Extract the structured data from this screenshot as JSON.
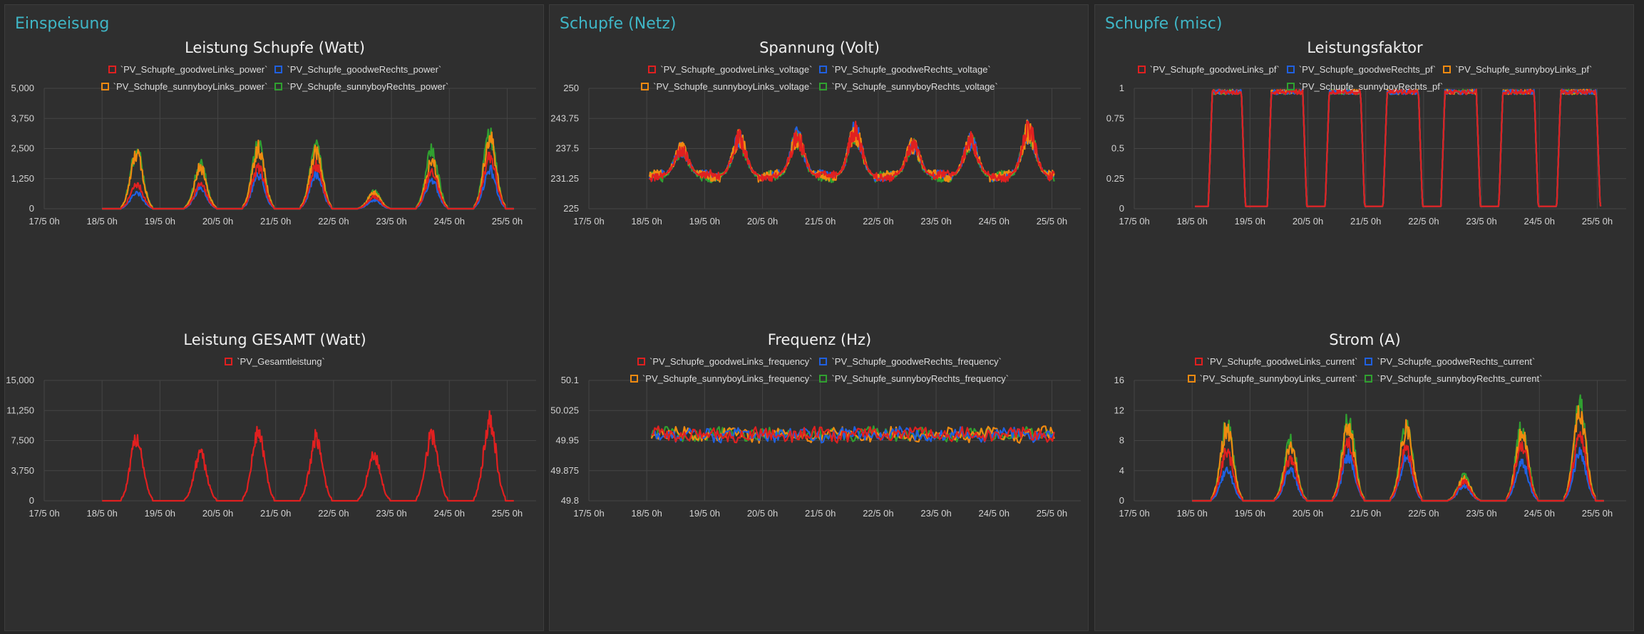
{
  "colors": {
    "background": "#262626",
    "panel": "#2f2f2f",
    "panel_title": "#3fb6c6",
    "grid": "#454545",
    "series": [
      "#e02020",
      "#2060e0",
      "#f08a10",
      "#30a030"
    ]
  },
  "panels": [
    {
      "title": "Einspeisung"
    },
    {
      "title": "Schupfe (Netz)"
    },
    {
      "title": "Schupfe (misc)"
    }
  ],
  "x_ticks": [
    "17/5  0h",
    "18/5  0h",
    "19/5  0h",
    "20/5  0h",
    "21/5  0h",
    "22/5  0h",
    "23/5  0h",
    "24/5  0h",
    "25/5  0h"
  ],
  "chart_data": [
    {
      "type": "line",
      "title": "Leistung Schupfe (Watt)",
      "xlabel": "",
      "ylabel": "",
      "ylim": [
        0,
        5000
      ],
      "y_ticks": [
        "0",
        "1,250",
        "2,500",
        "3,750",
        "5,000"
      ],
      "xlim": [
        "17/5 0h",
        "25/5 12h"
      ],
      "grid": true,
      "legend_position": "top",
      "series": [
        {
          "name": "`PV_Schupfe_goodweLinks_power`",
          "color": "#e02020",
          "days": [
            [
              18.6,
              1000
            ],
            [
              19.7,
              1000
            ],
            [
              20.7,
              1700
            ],
            [
              21.7,
              1800
            ],
            [
              22.7,
              500
            ],
            [
              23.7,
              1500
            ],
            [
              24.7,
              2200
            ]
          ]
        },
        {
          "name": "`PV_Schupfe_goodweRechts_power`",
          "color": "#2060e0",
          "days": [
            [
              18.6,
              650
            ],
            [
              19.7,
              850
            ],
            [
              20.7,
              1350
            ],
            [
              21.7,
              1450
            ],
            [
              22.7,
              350
            ],
            [
              23.7,
              1200
            ],
            [
              24.7,
              1600
            ]
          ]
        },
        {
          "name": "`PV_Schupfe_sunnyboyLinks_power`",
          "color": "#f08a10",
          "days": [
            [
              18.6,
              2250
            ],
            [
              19.7,
              1700
            ],
            [
              20.7,
              2500
            ],
            [
              21.7,
              2400
            ],
            [
              22.7,
              650
            ],
            [
              23.7,
              2000
            ],
            [
              24.7,
              2900
            ]
          ]
        },
        {
          "name": "`PV_Schupfe_sunnyboyRechts_power`",
          "color": "#30a030",
          "days": [
            [
              18.6,
              2450
            ],
            [
              19.7,
              1800
            ],
            [
              20.7,
              2700
            ],
            [
              21.7,
              2500
            ],
            [
              22.7,
              700
            ],
            [
              23.7,
              2400
            ],
            [
              24.7,
              3100
            ]
          ]
        }
      ]
    },
    {
      "type": "line",
      "title": "Leistung GESAMT (Watt)",
      "xlabel": "",
      "ylabel": "",
      "ylim": [
        0,
        15000
      ],
      "y_ticks": [
        "0",
        "3,750",
        "7,500",
        "11,250",
        "15,000"
      ],
      "xlim": [
        "17/5 0h",
        "25/5 12h"
      ],
      "grid": true,
      "legend_position": "top",
      "series": [
        {
          "name": "`PV_Gesamtleistung`",
          "color": "#e02020",
          "days": [
            [
              18.6,
              7800
            ],
            [
              19.7,
              5800
            ],
            [
              20.7,
              8600
            ],
            [
              21.7,
              7800
            ],
            [
              22.7,
              5700
            ],
            [
              23.7,
              8200
            ],
            [
              24.7,
              10200
            ]
          ]
        }
      ]
    },
    {
      "type": "line",
      "title": "Spannung (Volt)",
      "xlabel": "",
      "ylabel": "",
      "ylim": [
        225,
        250
      ],
      "y_ticks": [
        "225",
        "231.25",
        "237.5",
        "243.75",
        "250"
      ],
      "xlim": [
        "17/5 0h",
        "25/5 12h"
      ],
      "grid": true,
      "legend_position": "top",
      "baseline": 231.8,
      "peaks": [
        [
          18.6,
          239.0
        ],
        [
          19.6,
          241.5
        ],
        [
          20.6,
          242.0
        ],
        [
          21.6,
          243.5
        ],
        [
          22.6,
          240.0
        ],
        [
          23.6,
          241.0
        ],
        [
          24.6,
          243.8
        ]
      ],
      "series": [
        {
          "name": "`PV_Schupfe_goodweLinks_voltage`",
          "color": "#e02020"
        },
        {
          "name": "`PV_Schupfe_goodweRechts_voltage`",
          "color": "#2060e0"
        },
        {
          "name": "`PV_Schupfe_sunnyboyLinks_voltage`",
          "color": "#f08a10"
        },
        {
          "name": "`PV_Schupfe_sunnyboyRechts_voltage`",
          "color": "#30a030"
        }
      ]
    },
    {
      "type": "line",
      "title": "Frequenz (Hz)",
      "xlabel": "",
      "ylabel": "",
      "ylim": [
        49.8,
        50.1
      ],
      "y_ticks": [
        "49.8",
        "49.875",
        "49.95",
        "50.025",
        "50.1"
      ],
      "xlim": [
        "17/5 0h",
        "25/5 12h"
      ],
      "grid": true,
      "legend_position": "top",
      "baseline": 49.965,
      "series": [
        {
          "name": "`PV_Schupfe_goodweLinks_frequency`",
          "color": "#e02020"
        },
        {
          "name": "`PV_Schupfe_goodweRechts_frequency`",
          "color": "#2060e0"
        },
        {
          "name": "`PV_Schupfe_sunnyboyLinks_frequency`",
          "color": "#f08a10"
        },
        {
          "name": "`PV_Schupfe_sunnyboyRechts_frequency`",
          "color": "#30a030"
        }
      ]
    },
    {
      "type": "line",
      "title": "Leistungsfaktor",
      "xlabel": "",
      "ylabel": "",
      "ylim": [
        0,
        1
      ],
      "y_ticks": [
        "0",
        "0.25",
        "0.5",
        "0.75",
        "1"
      ],
      "xlim": [
        "17/5 0h",
        "25/5 12h"
      ],
      "grid": true,
      "legend_position": "top",
      "on_periods": [
        [
          18.28,
          18.92
        ],
        [
          19.3,
          19.98
        ],
        [
          20.3,
          20.98
        ],
        [
          21.3,
          21.98
        ],
        [
          22.3,
          22.98
        ],
        [
          23.3,
          23.98
        ],
        [
          24.3,
          25.05
        ]
      ],
      "series": [
        {
          "name": "`PV_Schupfe_goodweLinks_pf`",
          "color": "#e02020"
        },
        {
          "name": "`PV_Schupfe_goodweRechts_pf`",
          "color": "#2060e0"
        },
        {
          "name": "`PV_Schupfe_sunnyboyLinks_pf`",
          "color": "#f08a10"
        },
        {
          "name": "`PV_Schupfe_sunnyboyRechts_pf`",
          "color": "#30a030"
        }
      ]
    },
    {
      "type": "line",
      "title": "Strom (A)",
      "xlabel": "",
      "ylabel": "",
      "ylim": [
        0,
        16
      ],
      "y_ticks": [
        "0",
        "4",
        "8",
        "12",
        "16"
      ],
      "xlim": [
        "17/5 0h",
        "25/5 12h"
      ],
      "grid": true,
      "legend_position": "top",
      "series": [
        {
          "name": "`PV_Schupfe_goodweLinks_current`",
          "color": "#e02020",
          "days": [
            [
              18.6,
              6.5
            ],
            [
              19.7,
              5.5
            ],
            [
              20.7,
              7.5
            ],
            [
              21.7,
              7.0
            ],
            [
              22.7,
              2.5
            ],
            [
              23.7,
              7.5
            ],
            [
              24.7,
              9.0
            ]
          ]
        },
        {
          "name": "`PV_Schupfe_goodweRechts_current`",
          "color": "#2060e0",
          "days": [
            [
              18.6,
              4.0
            ],
            [
              19.7,
              4.0
            ],
            [
              20.7,
              6.0
            ],
            [
              21.7,
              5.5
            ],
            [
              22.7,
              2.0
            ],
            [
              23.7,
              5.0
            ],
            [
              24.7,
              6.5
            ]
          ]
        },
        {
          "name": "`PV_Schupfe_sunnyboyLinks_current`",
          "color": "#f08a10",
          "days": [
            [
              18.6,
              9.5
            ],
            [
              19.7,
              7.0
            ],
            [
              20.7,
              10.0
            ],
            [
              21.7,
              9.5
            ],
            [
              22.7,
              3.0
            ],
            [
              23.7,
              9.0
            ],
            [
              24.7,
              11.8
            ]
          ]
        },
        {
          "name": "`PV_Schupfe_sunnyboyRechts_current`",
          "color": "#30a030",
          "days": [
            [
              18.6,
              10.2
            ],
            [
              19.7,
              7.8
            ],
            [
              20.7,
              11.2
            ],
            [
              21.7,
              10.0
            ],
            [
              22.7,
              3.3
            ],
            [
              23.7,
              9.8
            ],
            [
              24.7,
              12.5
            ]
          ]
        }
      ]
    }
  ]
}
